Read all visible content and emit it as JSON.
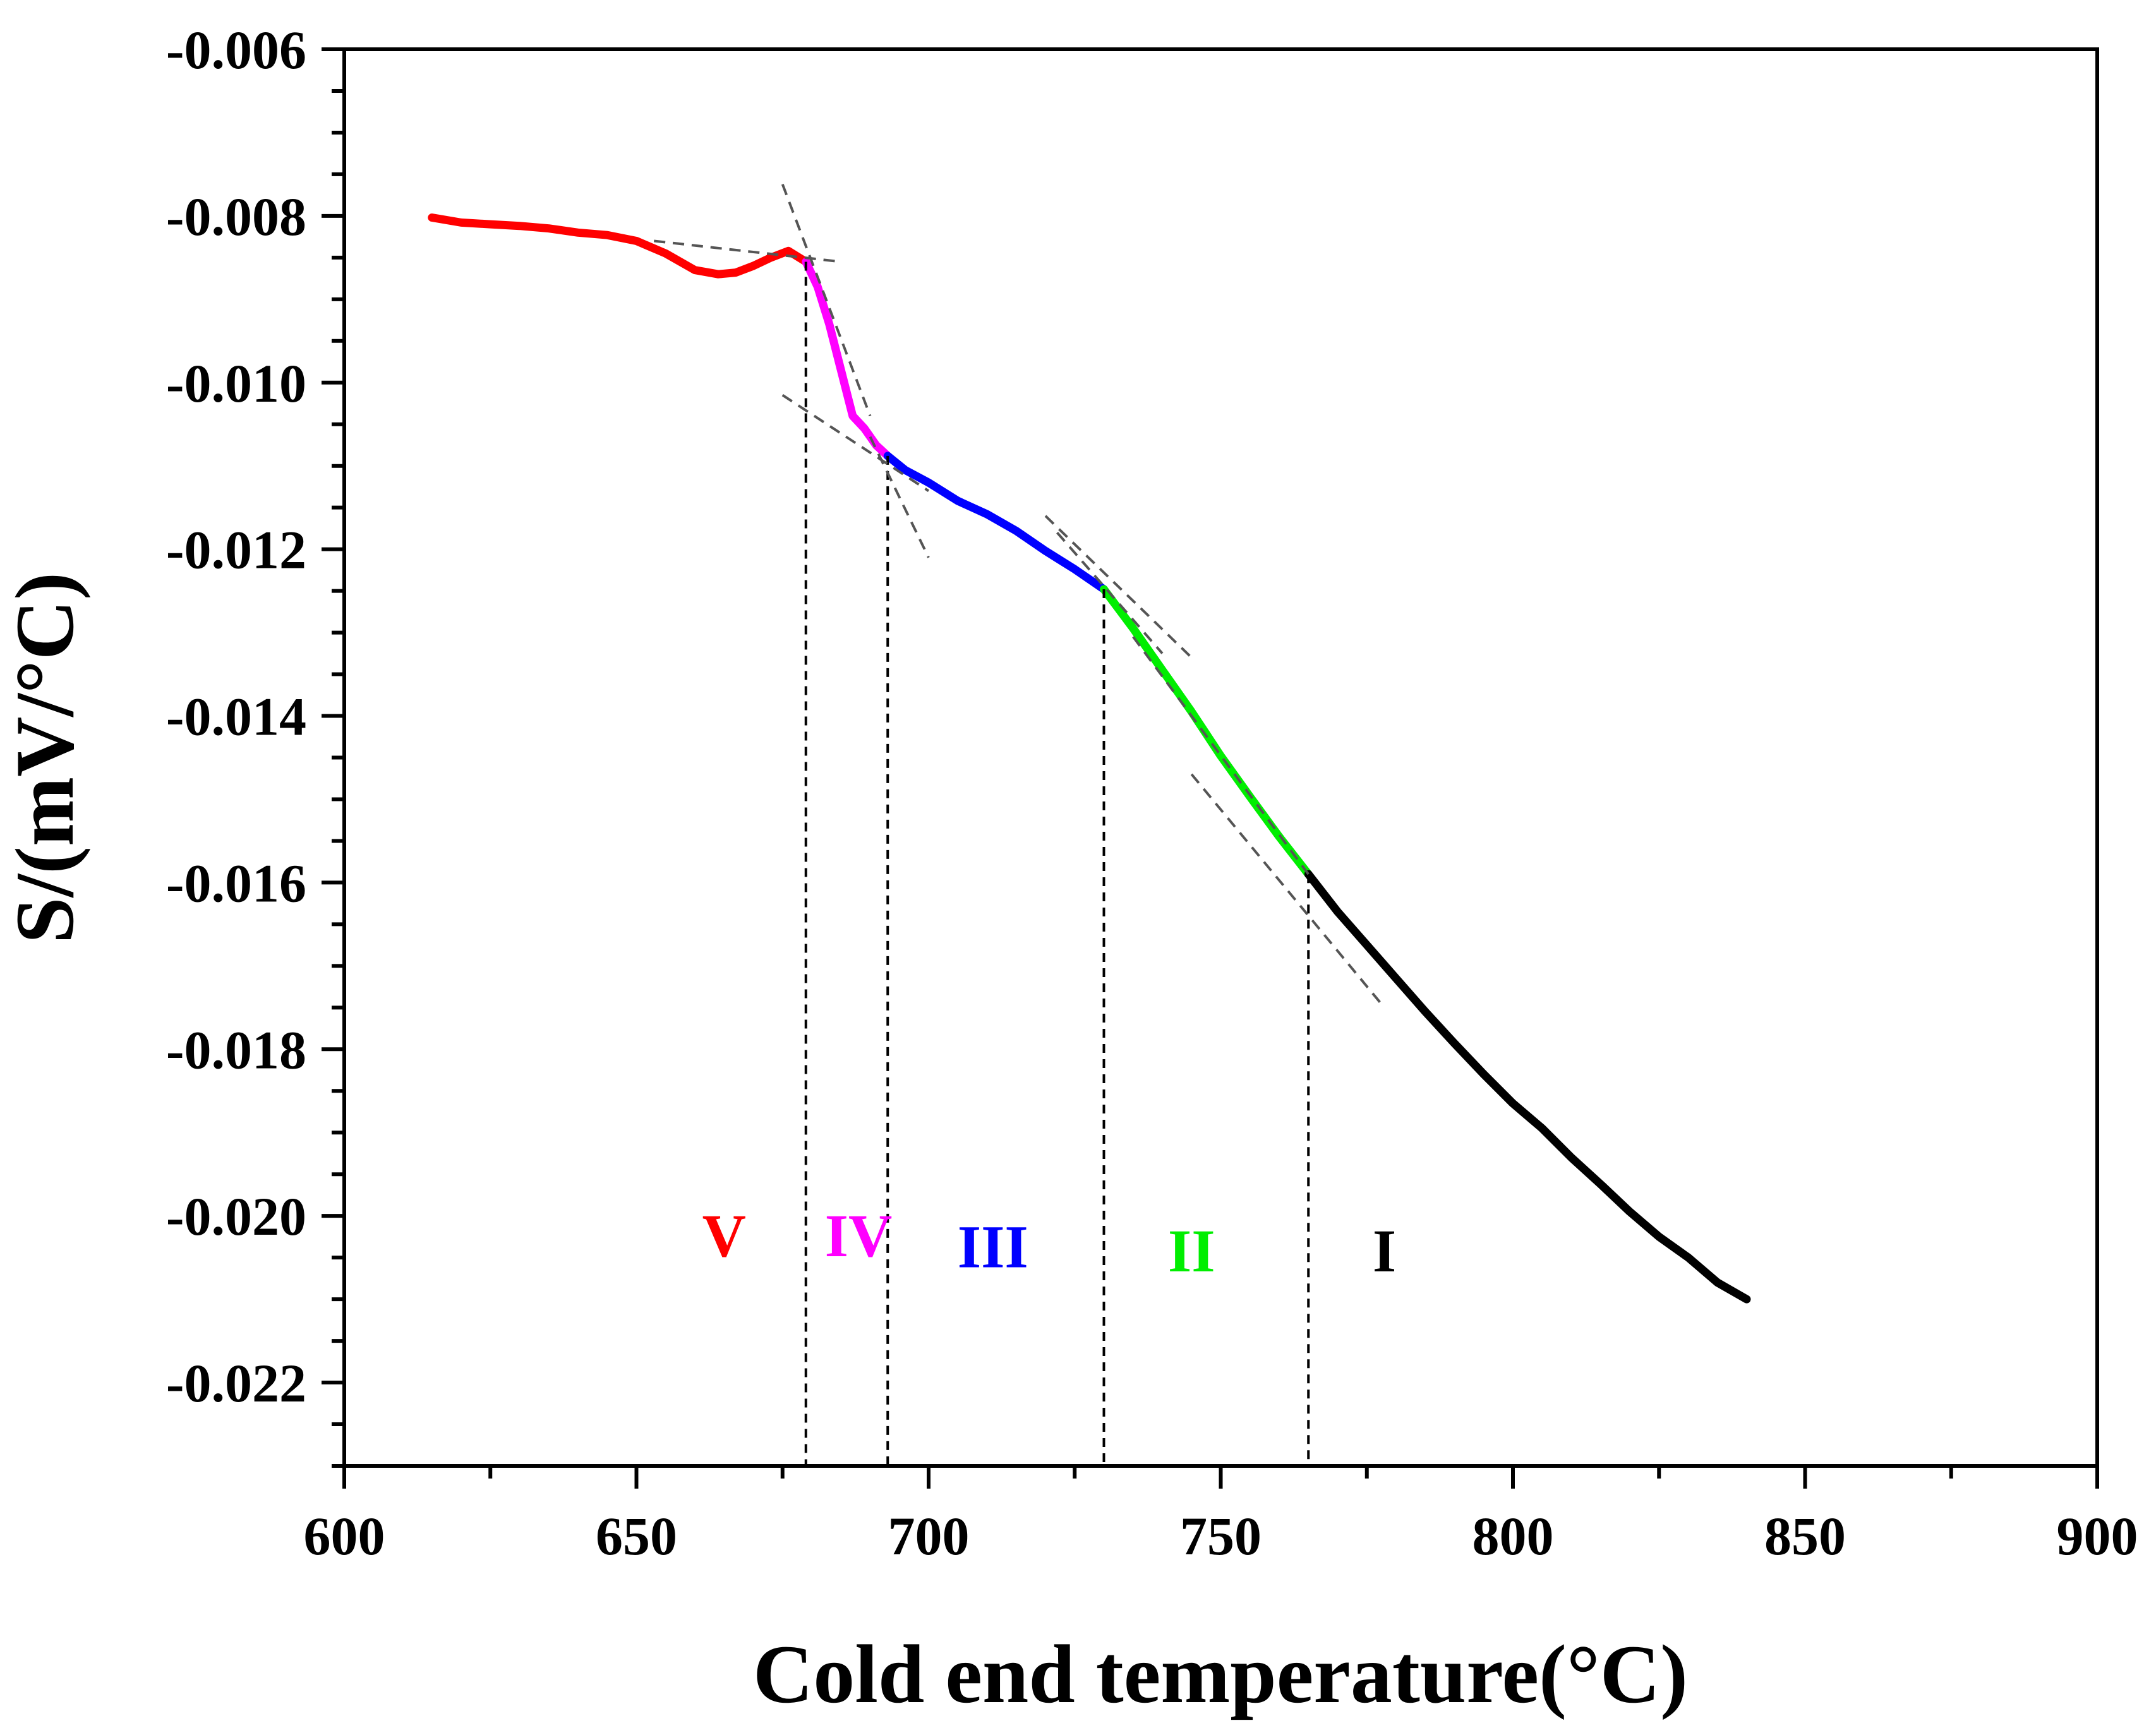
{
  "chart_data": {
    "type": "line",
    "title": "",
    "xlabel": "Cold end temperature(°C)",
    "ylabel": "S/(mV/°C)",
    "xlim": [
      600,
      900
    ],
    "ylim": [
      -0.023,
      -0.006
    ],
    "x_ticks": [
      600,
      650,
      700,
      750,
      800,
      850,
      900
    ],
    "x_tick_labels": [
      "600",
      "650",
      "700",
      "750",
      "800",
      "850",
      "900"
    ],
    "y_ticks": [
      -0.006,
      -0.008,
      -0.01,
      -0.012,
      -0.014,
      -0.016,
      -0.018,
      -0.02,
      -0.022
    ],
    "y_tick_labels": [
      "-0.006",
      "-0.008",
      "-0.010",
      "-0.012",
      "-0.014",
      "-0.016",
      "-0.018",
      "-0.020",
      "-0.022"
    ],
    "grid": false,
    "series": [
      {
        "name": "V",
        "color": "#ff0000",
        "x": [
          615,
          620,
          625,
          630,
          635,
          640,
          645,
          650,
          655,
          660,
          664,
          667,
          670,
          673,
          676,
          679
        ],
        "y": [
          -0.00802,
          -0.00808,
          -0.0081,
          -0.00812,
          -0.00815,
          -0.0082,
          -0.00823,
          -0.0083,
          -0.00845,
          -0.00865,
          -0.0087,
          -0.00868,
          -0.0086,
          -0.0085,
          -0.00842,
          -0.00855
        ]
      },
      {
        "name": "IV",
        "color": "#ff00ff",
        "x": [
          679,
          681,
          683,
          685,
          687,
          689,
          691,
          693
        ],
        "y": [
          -0.00855,
          -0.00885,
          -0.0093,
          -0.00985,
          -0.0104,
          -0.01055,
          -0.01075,
          -0.01088
        ]
      },
      {
        "name": "III",
        "color": "#0000ff",
        "x": [
          693,
          696,
          700,
          705,
          710,
          715,
          720,
          725,
          730
        ],
        "y": [
          -0.01088,
          -0.01105,
          -0.0112,
          -0.01142,
          -0.01158,
          -0.01178,
          -0.01202,
          -0.01224,
          -0.01248
        ]
      },
      {
        "name": "II",
        "color": "#00ee00",
        "x": [
          730,
          735,
          740,
          745,
          750,
          755,
          760,
          765
        ],
        "y": [
          -0.01248,
          -0.01295,
          -0.01345,
          -0.01395,
          -0.01448,
          -0.01497,
          -0.01545,
          -0.0159
        ]
      },
      {
        "name": "I",
        "color": "#000000",
        "x": [
          765,
          770,
          775,
          780,
          785,
          790,
          795,
          800,
          805,
          810,
          815,
          820,
          825,
          830,
          835,
          840
        ],
        "y": [
          -0.0159,
          -0.01635,
          -0.01675,
          -0.01715,
          -0.01755,
          -0.01793,
          -0.0183,
          -0.01865,
          -0.01895,
          -0.0193,
          -0.01962,
          -0.01995,
          -0.02025,
          -0.0205,
          -0.0208,
          -0.021
        ]
      }
    ],
    "boundaries": [
      679,
      693,
      730,
      765
    ],
    "tangent_lines": [
      {
        "x": [
          653,
          685
        ],
        "y": [
          -0.0083,
          -0.00855
        ]
      },
      {
        "x": [
          675,
          690
        ],
        "y": [
          -0.00762,
          -0.0104
        ]
      },
      {
        "x": [
          675,
          700
        ],
        "y": [
          -0.01015,
          -0.0113
        ]
      },
      {
        "x": [
          690,
          700
        ],
        "y": [
          -0.01065,
          -0.0121
        ]
      },
      {
        "x": [
          720,
          745
        ],
        "y": [
          -0.0116,
          -0.0133
        ]
      },
      {
        "x": [
          722,
          740
        ],
        "y": [
          -0.0118,
          -0.01325
        ]
      },
      {
        "x": [
          735,
          765
        ],
        "y": [
          -0.01305,
          -0.0159
        ]
      },
      {
        "x": [
          745,
          778
        ],
        "y": [
          -0.0147,
          -0.0175
        ]
      }
    ],
    "region_labels": [
      {
        "text": "V",
        "x": 665,
        "y": -0.02022,
        "color": "#ff0000"
      },
      {
        "text": "IV",
        "x": 688,
        "y": -0.02022,
        "color": "#ff00ff"
      },
      {
        "text": "III",
        "x": 711,
        "y": -0.02035,
        "color": "#0000ff"
      },
      {
        "text": "II",
        "x": 745,
        "y": -0.0204,
        "color": "#00ee00"
      },
      {
        "text": "I",
        "x": 778,
        "y": -0.0204,
        "color": "#000000"
      }
    ]
  }
}
